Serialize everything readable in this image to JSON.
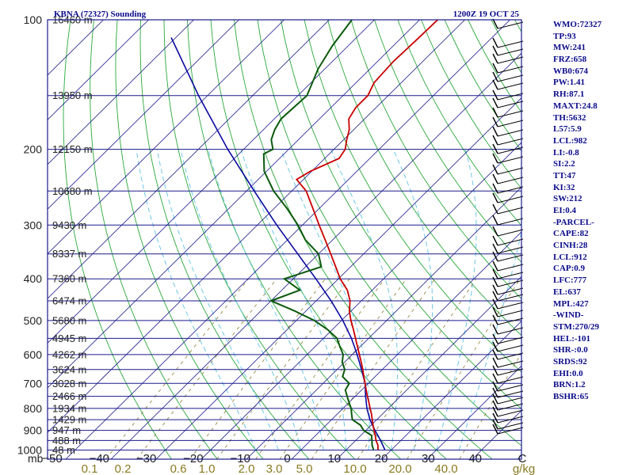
{
  "chart_data": {
    "type": "skew-t",
    "station": "KBNA (72327) Sounding",
    "time": "1200Z 19 OCT 25",
    "pressure_levels": [
      100,
      200,
      300,
      400,
      500,
      600,
      700,
      800,
      900,
      1000
    ],
    "pressure_unit": "mb",
    "temperature_ticks": [
      "−50",
      "−40",
      "−30",
      "−20",
      "−10",
      "0",
      "10",
      "20",
      "30",
      "40",
      "C"
    ],
    "mixing_ratio_ticks": [
      "0.1",
      "0.2",
      "0.6",
      "1.0",
      "2.0",
      "3.0",
      "5.0",
      "10.0",
      "20.0",
      "40.0",
      "g/kg"
    ],
    "height_labels": [
      {
        "p": 100,
        "label": "16460 m"
      },
      {
        "p": 150,
        "label": "13950 m"
      },
      {
        "p": 200,
        "label": "12150 m"
      },
      {
        "p": 250,
        "label": "10680 m"
      },
      {
        "p": 300,
        "label": "9430 m"
      },
      {
        "p": 350,
        "label": "8337 m"
      },
      {
        "p": 400,
        "label": "7360 m"
      },
      {
        "p": 450,
        "label": "6474 m"
      },
      {
        "p": 500,
        "label": "5680 m"
      },
      {
        "p": 550,
        "label": "4945 m"
      },
      {
        "p": 600,
        "label": "4262 m"
      },
      {
        "p": 650,
        "label": "3624 m"
      },
      {
        "p": 700,
        "label": "3028 m"
      },
      {
        "p": 750,
        "label": "2466 m"
      },
      {
        "p": 800,
        "label": "1934 m"
      },
      {
        "p": 850,
        "label": "1429 m"
      },
      {
        "p": 900,
        "label": "947 m"
      },
      {
        "p": 950,
        "label": "488 m"
      },
      {
        "p": 1000,
        "label": "48 m"
      }
    ],
    "temperature_profile": [
      [
        998,
        17.0
      ],
      [
        975,
        16.0
      ],
      [
        950,
        14.5
      ],
      [
        925,
        13.2
      ],
      [
        900,
        11.8
      ],
      [
        875,
        10.4
      ],
      [
        850,
        9.0
      ],
      [
        825,
        7.6
      ],
      [
        800,
        6.0
      ],
      [
        775,
        4.4
      ],
      [
        750,
        2.7
      ],
      [
        725,
        1.0
      ],
      [
        700,
        -0.7
      ],
      [
        675,
        -2.5
      ],
      [
        650,
        -4.3
      ],
      [
        625,
        -6.3
      ],
      [
        600,
        -8.4
      ],
      [
        575,
        -10.6
      ],
      [
        550,
        -12.9
      ],
      [
        525,
        -15.3
      ],
      [
        500,
        -17.9
      ],
      [
        475,
        -20.4
      ],
      [
        450,
        -22.5
      ],
      [
        425,
        -25.5
      ],
      [
        400,
        -29.6
      ],
      [
        375,
        -33.3
      ],
      [
        350,
        -37.3
      ],
      [
        325,
        -41.6
      ],
      [
        300,
        -46.3
      ],
      [
        275,
        -51.3
      ],
      [
        250,
        -56.8
      ],
      [
        235,
        -61.5
      ],
      [
        225,
        -60.3
      ],
      [
        210,
        -56.8
      ],
      [
        200,
        -57.5
      ],
      [
        190,
        -59.3
      ],
      [
        180,
        -61.0
      ],
      [
        170,
        -63.5
      ],
      [
        160,
        -64.5
      ],
      [
        150,
        -64.5
      ],
      [
        140,
        -66.0
      ],
      [
        125,
        -66.5
      ],
      [
        112,
        -66.2
      ],
      [
        100,
        -66.0
      ]
    ],
    "dewpoint_profile": [
      [
        998,
        16.0
      ],
      [
        975,
        14.7
      ],
      [
        950,
        13.6
      ],
      [
        925,
        12.4
      ],
      [
        900,
        9.5
      ],
      [
        875,
        7.6
      ],
      [
        850,
        4.6
      ],
      [
        825,
        3.2
      ],
      [
        800,
        1.8
      ],
      [
        775,
        0.0
      ],
      [
        750,
        -1.8
      ],
      [
        725,
        -3.6
      ],
      [
        700,
        -4.2
      ],
      [
        675,
        -7.2
      ],
      [
        650,
        -8.3
      ],
      [
        625,
        -10.5
      ],
      [
        600,
        -12.0
      ],
      [
        575,
        -14.5
      ],
      [
        550,
        -17.0
      ],
      [
        525,
        -21.0
      ],
      [
        500,
        -26.0
      ],
      [
        475,
        -32.5
      ],
      [
        450,
        -40.0
      ],
      [
        425,
        -36.0
      ],
      [
        400,
        -42.0
      ],
      [
        375,
        -36.5
      ],
      [
        350,
        -40.0
      ],
      [
        325,
        -46.0
      ],
      [
        300,
        -51.0
      ],
      [
        275,
        -57.0
      ],
      [
        250,
        -64.0
      ],
      [
        225,
        -70.5
      ],
      [
        205,
        -74.5
      ],
      [
        200,
        -73.5
      ],
      [
        190,
        -76.0
      ],
      [
        180,
        -77.5
      ],
      [
        170,
        -78.5
      ],
      [
        150,
        -78.0
      ],
      [
        130,
        -81.5
      ],
      [
        115,
        -83.5
      ],
      [
        100,
        -85.0
      ]
    ],
    "parcel_profile": [
      [
        998,
        18.5
      ],
      [
        950,
        15.5
      ],
      [
        925,
        13.8
      ],
      [
        900,
        12.0
      ],
      [
        850,
        8.5
      ],
      [
        800,
        5.3
      ],
      [
        750,
        2.3
      ],
      [
        700,
        -0.7
      ],
      [
        650,
        -4.6
      ],
      [
        600,
        -8.9
      ],
      [
        550,
        -13.8
      ],
      [
        500,
        -19.7
      ],
      [
        450,
        -26.7
      ],
      [
        400,
        -35.0
      ],
      [
        350,
        -44.6
      ],
      [
        300,
        -55.7
      ],
      [
        250,
        -68.3
      ],
      [
        200,
        -83.5
      ],
      [
        150,
        -102.0
      ],
      [
        110,
        -121.0
      ]
    ],
    "indices": [
      "WMO:72327",
      "TP:93",
      "MW:241",
      "FRZ:658",
      "WB0:674",
      "PW:1.41",
      "RH:87.1",
      "MAXT:24.8",
      "TH:5632",
      "L57:5.9",
      "LCL:982",
      "LI:-0.8",
      "SI:2.2",
      "TT:47",
      "KI:32",
      "SW:212",
      "EI:0.4",
      "-PARCEL-",
      "CAPE:82",
      "CINH:28",
      "LCL:912",
      "CAP:0.9",
      "LFC:777",
      "EL:637",
      "MPL:427",
      "-WIND-",
      "STM:270/29",
      "HEL:-101",
      "SHR-:0.0",
      "SRDS:92",
      "EHI:0.0",
      "BRN:1.2",
      "BSHR:65"
    ],
    "colors": {
      "frame": "#1a1a8c",
      "isobar": "#1a1a8c",
      "isotherm": "#1a1a8c",
      "dry_adiabat": "#2aa83a",
      "moist_adiabat": "#6ec8e8",
      "mixing_ratio": "#8a7a30",
      "temperature": "#c80000",
      "dewpoint": "#0c5a0c",
      "parcel": "#0a0aa0",
      "text": "#0a0a8a"
    }
  }
}
